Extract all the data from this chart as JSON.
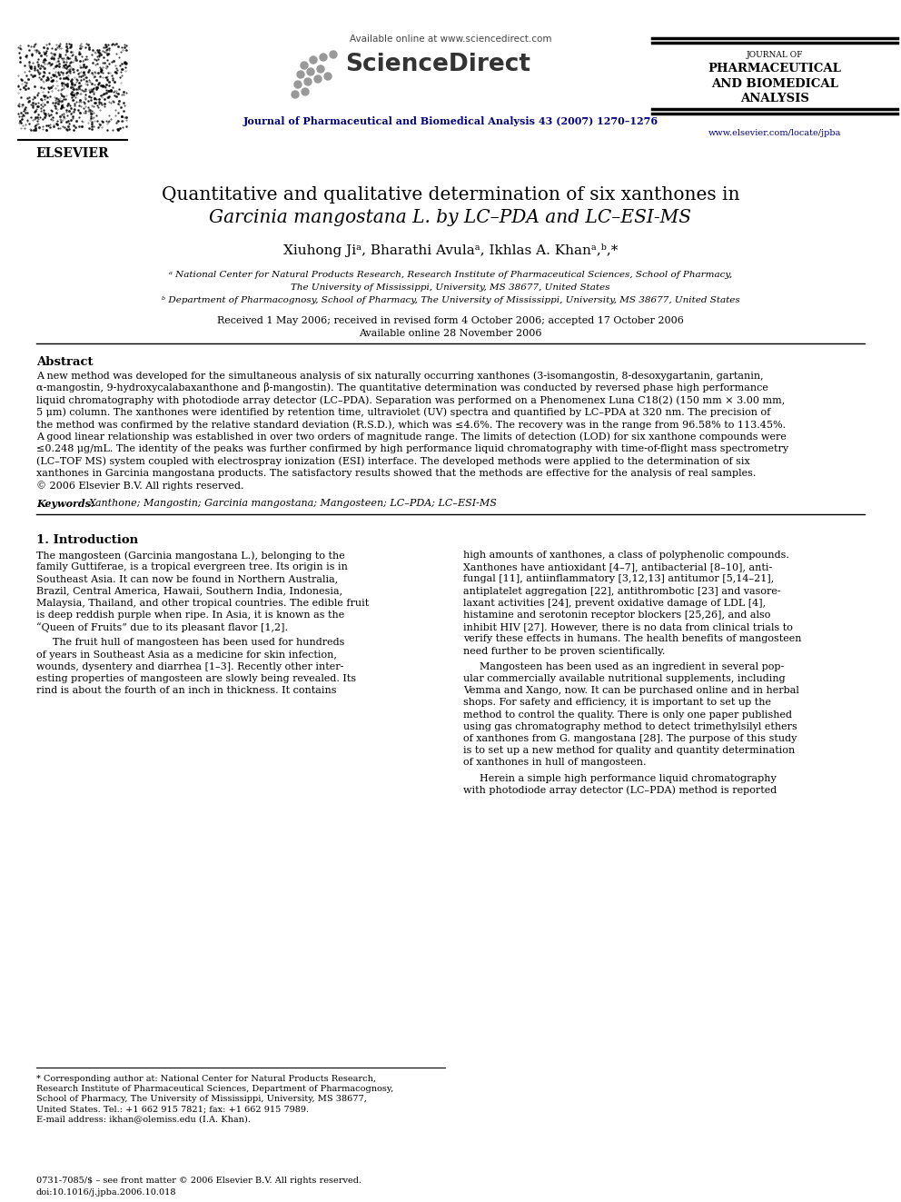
{
  "page_width": 9.92,
  "page_height": 13.23,
  "dpi": 100,
  "bg_color": "#ffffff",
  "header": {
    "available_online": "Available online at www.sciencedirect.com",
    "journal_name_line1": "Journal of Pharmaceutical and Biomedical Analysis 43 (2007) 1270–1276",
    "elsevier_text": "ELSEVIER",
    "journal_box_line1": "JOURNAL OF",
    "journal_box_line2": "PHARMACEUTICAL",
    "journal_box_line3": "AND BIOMEDICAL",
    "journal_box_line4": "ANALYSIS",
    "website": "www.elsevier.com/locate/jpba"
  },
  "title_line1": "Quantitative and qualitative determination of six xanthones in",
  "title_line2_italic": "Garcinia mangostana",
  "title_line2_normal": " L. by LC–PDA and LC–ESI-MS",
  "authors": "Xiuhong Jiᵃ, Bharathi Avulaᵃ, Ikhlas A. Khanᵃ,ᵇ,*",
  "affiliation_a": "ᵃ National Center for Natural Products Research, Research Institute of Pharmaceutical Sciences, School of Pharmacy,",
  "affiliation_a2": "The University of Mississippi, University, MS 38677, United States",
  "affiliation_b": "ᵇ Department of Pharmacognosy, School of Pharmacy, The University of Mississippi, University, MS 38677, United States",
  "received": "Received 1 May 2006; received in revised form 4 October 2006; accepted 17 October 2006",
  "available": "Available online 28 November 2006",
  "abstract_title": "Abstract",
  "abstract_text": "A new method was developed for the simultaneous analysis of six naturally occurring xanthones (3-isomangostin, 8-desoxygartanin, gartanin,\nα-mangostin, 9-hydroxycalabaxanthone and β-mangostin). The quantitative determination was conducted by reversed phase high performance\nliquid chromatography with photodiode array detector (LC–PDA). Separation was performed on a Phenomenex Luna C18(2) (150 mm × 3.00 mm,\n5 μm) column. The xanthones were identified by retention time, ultraviolet (UV) spectra and quantified by LC–PDA at 320 nm. The precision of\nthe method was confirmed by the relative standard deviation (R.S.D.), which was ≤4.6%. The recovery was in the range from 96.58% to 113.45%.\nA good linear relationship was established in over two orders of magnitude range. The limits of detection (LOD) for six xanthone compounds were\n≤0.248 μg/mL. The identity of the peaks was further confirmed by high performance liquid chromatography with time-of-flight mass spectrometry\n(LC–TOF MS) system coupled with electrospray ionization (ESI) interface. The developed methods were applied to the determination of six\nxanthones in Garcinia mangostana products. The satisfactory results showed that the methods are effective for the analysis of real samples.\n© 2006 Elsevier B.V. All rights reserved.",
  "keywords_label": "Keywords:",
  "keywords_text": "Xanthone; Mangostin; Garcinia mangostana; Mangosteen; LC–PDA; LC–ESI-MS",
  "section1_title": "1. Introduction",
  "intro_col1_para1": "The mangosteen (Garcinia mangostana L.), belonging to the\nfamily Guttiferae, is a tropical evergreen tree. Its origin is in\nSoutheast Asia. It can now be found in Northern Australia,\nBrazil, Central America, Hawaii, Southern India, Indonesia,\nMalaysia, Thailand, and other tropical countries. The edible fruit\nis deep reddish purple when ripe. In Asia, it is known as the\n“Queen of Fruits” due to its pleasant flavor [1,2].",
  "intro_col1_para2": "The fruit hull of mangosteen has been used for hundreds\nof years in Southeast Asia as a medicine for skin infection,\nwounds, dysentery and diarrhea [1–3]. Recently other inter-\nesting properties of mangosteen are slowly being revealed. Its\nrind is about the fourth of an inch in thickness. It contains",
  "intro_col2_para1": "high amounts of xanthones, a class of polyphenolic compounds.\nXanthones have antioxidant [4–7], antibacterial [8–10], anti-\nfungal [11], antiinflammatory [3,12,13] antitumor [5,14–21],\nantiplatelet aggregation [22], antithrombotic [23] and vasore-\nlaxant activities [24], prevent oxidative damage of LDL [4],\nhistamine and serotonin receptor blockers [25,26], and also\ninhibit HIV [27]. However, there is no data from clinical trials to\nverify these effects in humans. The health benefits of mangosteen\nneed further to be proven scientifically.",
  "intro_col2_para2": "Mangosteen has been used as an ingredient in several pop-\nular commercially available nutritional supplements, including\nVemma and Xango, now. It can be purchased online and in herbal\nshops. For safety and efficiency, it is important to set up the\nmethod to control the quality. There is only one paper published\nusing gas chromatography method to detect trimethylsilyl ethers\nof xanthones from G. mangostana [28]. The purpose of this study\nis to set up a new method for quality and quantity determination\nof xanthones in hull of mangosteen.",
  "intro_col2_para3": "Herein a simple high performance liquid chromatography\nwith photodiode array detector (LC–PDA) method is reported",
  "footnote_star": "* Corresponding author at: National Center for Natural Products Research,\nResearch Institute of Pharmaceutical Sciences, Department of Pharmacognosy,\nSchool of Pharmacy, The University of Mississippi, University, MS 38677,\nUnited States. Tel.: +1 662 915 7821; fax: +1 662 915 7989.",
  "footnote_email": "E-mail address: ikhan@olemiss.edu (I.A. Khan).",
  "footer_left": "0731-7085/$ – see front matter © 2006 Elsevier B.V. All rights reserved.",
  "footer_doi": "doi:10.1016/j.jpba.2006.10.018"
}
